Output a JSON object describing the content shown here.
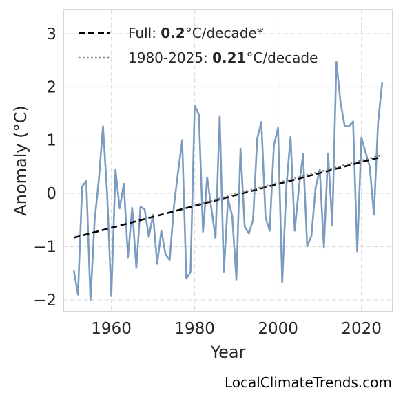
{
  "chart_data": {
    "type": "line",
    "xlabel": "Year",
    "ylabel": "Anomaly (°C)",
    "xlim": [
      1948.5,
      2027.5
    ],
    "ylim": [
      -2.22,
      3.45
    ],
    "xticks": [
      1960,
      1980,
      2000,
      2020
    ],
    "yticks": [
      -2,
      -1,
      0,
      1,
      2,
      3
    ],
    "grid": true,
    "legend_position": "top-left",
    "legend": [
      {
        "prefix": "Full: ",
        "bold": "0.2",
        "suffix": "°C/decade*",
        "style": "dashed",
        "color": "#000000"
      },
      {
        "prefix": "1980-2025: ",
        "bold": "0.21",
        "suffix": "°C/decade",
        "style": "dotted",
        "color": "#808080"
      }
    ],
    "series": [
      {
        "color": "#7b9cc0",
        "x": [
          1951,
          1952,
          1953,
          1954,
          1955,
          1956,
          1957,
          1958,
          1959,
          1960,
          1961,
          1962,
          1963,
          1964,
          1965,
          1966,
          1967,
          1968,
          1969,
          1970,
          1971,
          1972,
          1973,
          1974,
          1975,
          1976,
          1977,
          1978,
          1979,
          1980,
          1981,
          1982,
          1983,
          1984,
          1985,
          1986,
          1987,
          1988,
          1989,
          1990,
          1991,
          1992,
          1993,
          1994,
          1995,
          1996,
          1997,
          1998,
          1999,
          2000,
          2001,
          2002,
          2003,
          2004,
          2005,
          2006,
          2007,
          2008,
          2009,
          2010,
          2011,
          2012,
          2013,
          2014,
          2015,
          2016,
          2017,
          2018,
          2019,
          2020,
          2021,
          2022,
          2023,
          2024,
          2025
        ],
        "y": [
          -1.45,
          -1.9,
          0.13,
          0.23,
          -2.0,
          -0.5,
          0.25,
          1.26,
          0.0,
          -1.93,
          0.44,
          -0.28,
          0.18,
          -1.2,
          -0.27,
          -1.4,
          -0.25,
          -0.3,
          -0.82,
          -0.4,
          -1.32,
          -0.7,
          -1.14,
          -1.25,
          -0.25,
          0.39,
          1.0,
          -1.6,
          -1.48,
          1.65,
          1.48,
          -0.72,
          0.3,
          -0.28,
          -0.84,
          1.45,
          -1.48,
          -0.1,
          -0.42,
          -1.62,
          0.84,
          -0.62,
          -0.75,
          -0.5,
          1.03,
          1.34,
          -0.45,
          -0.7,
          0.9,
          1.23,
          -1.67,
          0.13,
          1.06,
          -0.7,
          0.1,
          0.74,
          -0.99,
          -0.8,
          0.1,
          0.45,
          -1.02,
          0.75,
          -0.6,
          2.47,
          1.7,
          1.26,
          1.26,
          1.35,
          -1.1,
          1.05,
          0.77,
          0.5,
          -0.4,
          1.33,
          2.09
        ]
      }
    ],
    "trend_lines": [
      {
        "label": "Full",
        "x": [
          1951,
          2025
        ],
        "y": [
          -0.83,
          0.69
        ],
        "style": "dashed",
        "color": "#000000"
      },
      {
        "label": "1980-2025",
        "x": [
          1980,
          2025
        ],
        "y": [
          -0.22,
          0.72
        ],
        "style": "dotted",
        "color": "#808080"
      }
    ]
  },
  "watermark": "LocalClimateTrends.com"
}
